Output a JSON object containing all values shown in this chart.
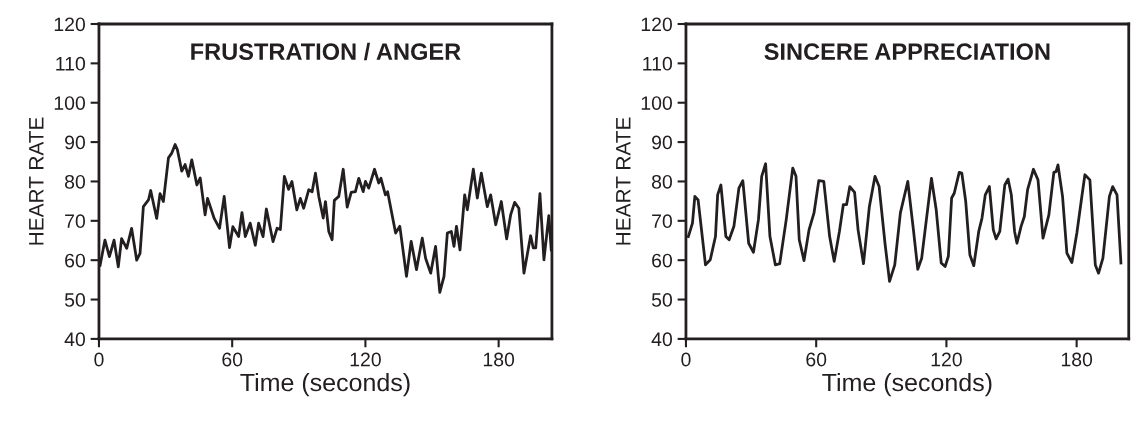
{
  "chart_data": [
    {
      "type": "line",
      "title": "FRUSTRATION / ANGER",
      "xlabel": "Time (seconds)",
      "ylabel": "HEART RATE",
      "xlim": [
        0,
        204
      ],
      "ylim": [
        40,
        120
      ],
      "xticks": [
        0,
        60,
        120,
        180
      ],
      "yticks": [
        40,
        50,
        60,
        70,
        80,
        90,
        100,
        110,
        120
      ],
      "grid": false,
      "legend": false,
      "marker": "none",
      "line_style": "solid",
      "series": [
        {
          "color": "#231f20",
          "x": [
            0.5,
            2.7,
            4.7,
            6.8,
            8.7,
            10.2,
            12.5,
            14.7,
            17,
            18.5,
            20,
            22.3,
            23.3,
            26,
            27.5,
            29,
            31.3,
            32.8,
            34.3,
            35.3,
            37.3,
            38.8,
            40.3,
            41.8,
            44.1,
            45.6,
            47.8,
            48.9,
            51.9,
            54.3,
            56.4,
            58.8,
            60.3,
            62.9,
            64.4,
            65.9,
            68.1,
            70.4,
            71.9,
            73.9,
            75.4,
            78.4,
            80.2,
            81.7,
            83.5,
            85.4,
            86.9,
            89.1,
            90.7,
            92.2,
            94.5,
            96,
            97.5,
            99,
            101,
            102,
            103.5,
            105,
            106,
            108,
            110,
            111.8,
            113.6,
            115.5,
            117,
            119,
            120,
            121.5,
            124.1,
            126,
            127,
            129,
            130,
            133.6,
            135.5,
            138.5,
            140.6,
            143,
            145.6,
            147.1,
            149.4,
            151.6,
            153.5,
            155.4,
            156.9,
            158.7,
            159.9,
            161,
            162.6,
            164.7,
            165.9,
            168.6,
            170.4,
            172.2,
            174.9,
            176.4,
            178.7,
            181.2,
            183.6,
            185.4,
            187.2,
            189.1,
            191.4,
            194.4,
            195.6,
            196.7,
            198.6,
            200.4,
            202.6,
            203.7
          ],
          "values": [
            58.7,
            65.1,
            60.9,
            65.1,
            58.3,
            65.5,
            63,
            68.1,
            60,
            61.7,
            73.6,
            75.3,
            77.7,
            70.6,
            76.9,
            74.9,
            86,
            87.2,
            89.4,
            88.1,
            82.6,
            84.3,
            81.3,
            85.5,
            79.1,
            80.9,
            71.5,
            75.7,
            70.6,
            68.1,
            76.2,
            63.2,
            68.5,
            66,
            72.1,
            66,
            69.4,
            63.8,
            69.4,
            66,
            73,
            64.7,
            68.1,
            67.8,
            81.3,
            78,
            80,
            72.8,
            75.7,
            73.2,
            77.9,
            77.4,
            82.1,
            76.2,
            70.7,
            74.9,
            67.3,
            65.2,
            75.2,
            76.2,
            83.1,
            73.5,
            77.2,
            77.4,
            80.8,
            77.4,
            80,
            78.3,
            83.1,
            79.6,
            80.8,
            76.6,
            77.4,
            66.9,
            68.6,
            55.9,
            64.8,
            57.6,
            65.6,
            60.5,
            56.7,
            63.5,
            51.8,
            55.9,
            66.9,
            67.3,
            63.5,
            68.6,
            62.6,
            76.6,
            72.8,
            83.1,
            75.8,
            82.1,
            73.6,
            76.6,
            69,
            74.9,
            65.4,
            71.5,
            74.7,
            73.2,
            56.7,
            66.2,
            63.1,
            63.1,
            76.9,
            60.1,
            71.3,
            62.6
          ]
        }
      ]
    },
    {
      "type": "line",
      "title": "SINCERE APPRECIATION",
      "xlabel": "Time (seconds)",
      "ylabel": "HEART RATE",
      "xlim": [
        0,
        204
      ],
      "ylim": [
        40,
        120
      ],
      "xticks": [
        0,
        60,
        120,
        180
      ],
      "yticks": [
        40,
        50,
        60,
        70,
        80,
        90,
        100,
        110,
        120
      ],
      "grid": false,
      "legend": false,
      "marker": "none",
      "line_style": "solid",
      "series": [
        {
          "color": "#231f20",
          "x": [
            1.1,
            3,
            4.1,
            5.6,
            9,
            11.2,
            13.6,
            14.6,
            16.1,
            18.4,
            19.9,
            22.1,
            24.4,
            26.2,
            28.9,
            31.1,
            33.4,
            34.9,
            36.7,
            38.7,
            41.2,
            43.2,
            46.2,
            49.2,
            50.7,
            52.2,
            54.4,
            56.7,
            59,
            61.2,
            63.5,
            66.2,
            68.3,
            70.7,
            72.5,
            74,
            75.5,
            77.7,
            79.3,
            81.8,
            84.5,
            87.1,
            89,
            91.7,
            93.8,
            96.2,
            98.8,
            102.2,
            104.8,
            106.8,
            108.6,
            113.1,
            115.3,
            117.6,
            119.4,
            120.9,
            122.4,
            123.6,
            125.9,
            127.1,
            128.9,
            130.8,
            132.6,
            134.9,
            136.4,
            137.9,
            139.8,
            141.6,
            142.9,
            144.6,
            146.9,
            148.4,
            149.9,
            151.4,
            152.5,
            154.4,
            155.9,
            157.4,
            160.1,
            162.2,
            164.5,
            167.2,
            169.5,
            170.5,
            171.4,
            173.5,
            175.5,
            177.8,
            180.1,
            182.3,
            183.8,
            186.1,
            188.6,
            190.1,
            192.1,
            195.1,
            196.6,
            198.6,
            200.4
          ],
          "values": [
            66,
            69.4,
            76.2,
            75.3,
            58.8,
            60.1,
            66,
            76.6,
            79.1,
            66,
            65.2,
            68.6,
            78.3,
            80.2,
            64.3,
            62,
            70.3,
            81.3,
            84.5,
            66,
            58.8,
            59.1,
            70.3,
            83.4,
            81.3,
            65.2,
            59.9,
            67.7,
            72,
            80.2,
            80,
            66,
            59.7,
            67.3,
            74.1,
            74.1,
            78.7,
            77.2,
            67.7,
            59.1,
            73.6,
            81.3,
            78.7,
            64.3,
            54.6,
            58.8,
            72,
            80,
            67.7,
            57.7,
            60.5,
            80.8,
            72.8,
            59.3,
            58.4,
            61,
            75.8,
            77,
            82.3,
            82.1,
            74.9,
            61.4,
            58.6,
            67.3,
            70.7,
            76.6,
            78.7,
            67.7,
            65.4,
            67.3,
            79.1,
            80.6,
            76.6,
            67.3,
            64.3,
            68.6,
            71.1,
            77.9,
            83.1,
            80.4,
            65.6,
            71.5,
            82.3,
            82.5,
            84.2,
            76.2,
            61.8,
            59.4,
            66.9,
            75.8,
            81.7,
            80.4,
            58.8,
            56.7,
            60.5,
            76.2,
            78.7,
            76.6,
            59.3
          ]
        }
      ]
    }
  ]
}
